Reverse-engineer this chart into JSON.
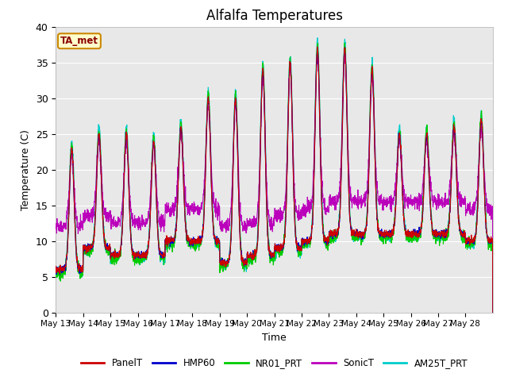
{
  "title": "Alfalfa Temperatures",
  "xlabel": "Time",
  "ylabel": "Temperature (C)",
  "annotation": "TA_met",
  "ylim": [
    0,
    40
  ],
  "background_color": "#e8e8e8",
  "series_colors": {
    "PanelT": "#cc0000",
    "HMP60": "#0000cc",
    "NR01_PRT": "#00cc00",
    "SonicT": "#bb00bb",
    "AM25T_PRT": "#00cccc"
  },
  "x_tick_labels": [
    "May 13",
    "May 14",
    "May 15",
    "May 16",
    "May 17",
    "May 18",
    "May 19",
    "May 20",
    "May 21",
    "May 22",
    "May 23",
    "May 24",
    "May 25",
    "May 26",
    "May 27",
    "May 28"
  ],
  "yticks": [
    0,
    5,
    10,
    15,
    20,
    25,
    30,
    35,
    40
  ],
  "legend_entries": [
    "PanelT",
    "HMP60",
    "NR01_PRT",
    "SonicT",
    "AM25T_PRT"
  ]
}
